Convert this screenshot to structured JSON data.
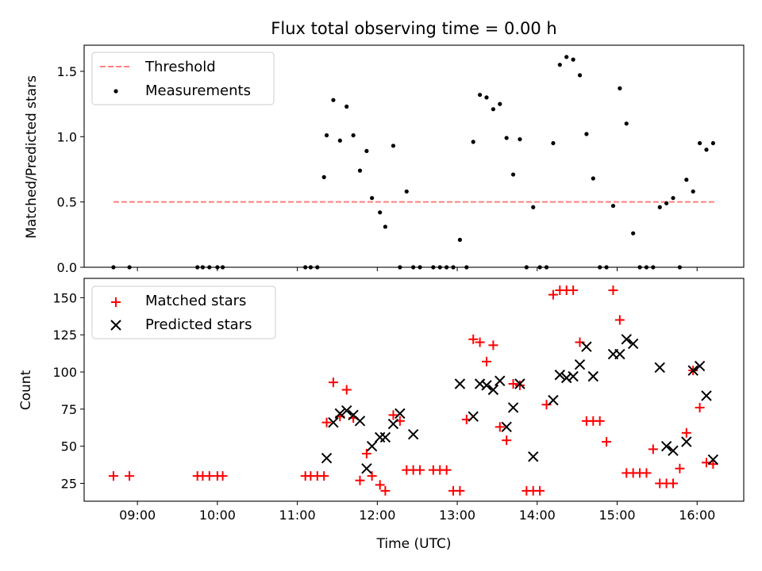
{
  "chart_data": [
    {
      "type": "scatter",
      "title": "Flux total observing time = 0.00 h",
      "xlabel": "",
      "ylabel": "Matched/Predicted stars",
      "xlim": [
        "08:20",
        "16:35"
      ],
      "ylim": [
        0,
        1.7
      ],
      "yticks": [
        0.0,
        0.5,
        1.0,
        1.5
      ],
      "ytick_labels": [
        "0.0",
        "0.5",
        "1.0",
        "1.5"
      ],
      "xticks": [
        "09:00",
        "10:00",
        "11:00",
        "12:00",
        "13:00",
        "14:00",
        "15:00",
        "16:00"
      ],
      "grid": false,
      "legend_position": "top-left",
      "series": [
        {
          "name": "Threshold",
          "style": "dashed-line",
          "color": "#ff7f7f",
          "x": [
            "08:42",
            "16:13"
          ],
          "y": [
            0.5,
            0.5
          ]
        },
        {
          "name": "Measurements",
          "style": "dot",
          "color": "#000000",
          "x": [
            "08:42",
            "08:54",
            "09:45",
            "09:49",
            "09:54",
            "10:00",
            "10:04",
            "11:06",
            "11:10",
            "11:15",
            "11:20",
            "11:22",
            "11:27",
            "11:32",
            "11:37",
            "11:42",
            "11:47",
            "11:52",
            "11:56",
            "12:02",
            "12:06",
            "12:12",
            "12:17",
            "12:22",
            "12:27",
            "12:32",
            "12:42",
            "12:47",
            "12:52",
            "12:57",
            "13:02",
            "13:07",
            "13:12",
            "13:17",
            "13:22",
            "13:27",
            "13:32",
            "13:37",
            "13:42",
            "13:47",
            "13:52",
            "13:57",
            "14:02",
            "14:07",
            "14:12",
            "14:17",
            "14:22",
            "14:27",
            "14:32",
            "14:37",
            "14:42",
            "14:47",
            "14:52",
            "14:57",
            "15:02",
            "15:07",
            "15:12",
            "15:17",
            "15:22",
            "15:27",
            "15:32",
            "15:37",
            "15:42",
            "15:47",
            "15:52",
            "15:57",
            "16:02",
            "16:07",
            "16:12"
          ],
          "y": [
            0.0,
            0.0,
            0.0,
            0.0,
            0.0,
            0.0,
            0.0,
            0.0,
            0.0,
            0.0,
            0.69,
            1.01,
            1.28,
            0.97,
            1.23,
            1.01,
            0.74,
            0.89,
            0.53,
            0.42,
            0.31,
            0.93,
            0.0,
            0.58,
            0.0,
            0.0,
            0.0,
            0.0,
            0.0,
            0.0,
            0.21,
            0.0,
            0.96,
            1.32,
            1.3,
            1.21,
            1.25,
            0.99,
            0.71,
            0.98,
            0.0,
            0.46,
            0.0,
            0.0,
            0.95,
            1.55,
            1.61,
            1.59,
            1.47,
            1.02,
            0.68,
            0.0,
            0.0,
            0.47,
            1.37,
            1.1,
            0.26,
            0.0,
            0.0,
            0.0,
            0.46,
            0.49,
            0.53,
            0.0,
            0.67,
            0.58,
            0.95,
            0.9,
            0.95
          ]
        }
      ]
    },
    {
      "type": "scatter",
      "title": "",
      "xlabel": "Time (UTC)",
      "ylabel": "Count",
      "xlim": [
        "08:20",
        "16:35"
      ],
      "ylim": [
        13,
        163
      ],
      "yticks": [
        25,
        50,
        75,
        100,
        125,
        150
      ],
      "ytick_labels": [
        "25",
        "50",
        "75",
        "100",
        "125",
        "150"
      ],
      "xticks": [
        "09:00",
        "10:00",
        "11:00",
        "12:00",
        "13:00",
        "14:00",
        "15:00",
        "16:00"
      ],
      "xtick_labels": [
        "09:00",
        "10:00",
        "11:00",
        "12:00",
        "13:00",
        "14:00",
        "15:00",
        "16:00"
      ],
      "grid": false,
      "legend_position": "top-left",
      "series": [
        {
          "name": "Matched stars",
          "style": "plus",
          "color": "#ff0000",
          "x": [
            "08:42",
            "08:54",
            "09:45",
            "09:49",
            "09:54",
            "10:00",
            "10:04",
            "11:06",
            "11:10",
            "11:15",
            "11:20",
            "11:22",
            "11:27",
            "11:32",
            "11:37",
            "11:42",
            "11:47",
            "11:52",
            "11:56",
            "12:02",
            "12:06",
            "12:12",
            "12:17",
            "12:22",
            "12:27",
            "12:32",
            "12:42",
            "12:47",
            "12:52",
            "12:57",
            "13:02",
            "13:07",
            "13:12",
            "13:17",
            "13:22",
            "13:27",
            "13:32",
            "13:37",
            "13:42",
            "13:47",
            "13:52",
            "13:57",
            "14:02",
            "14:07",
            "14:12",
            "14:17",
            "14:22",
            "14:27",
            "14:32",
            "14:37",
            "14:42",
            "14:47",
            "14:52",
            "14:57",
            "15:02",
            "15:07",
            "15:12",
            "15:17",
            "15:22",
            "15:27",
            "15:32",
            "15:37",
            "15:42",
            "15:47",
            "15:52",
            "15:57",
            "16:02",
            "16:07",
            "16:12"
          ],
          "y": [
            30,
            30,
            30,
            30,
            30,
            30,
            30,
            30,
            30,
            30,
            30,
            66,
            93,
            70,
            88,
            69,
            27,
            45,
            30,
            24,
            20,
            71,
            67,
            34,
            34,
            34,
            34,
            34,
            34,
            20,
            20,
            68,
            122,
            120,
            107,
            118,
            63,
            54,
            92,
            91,
            20,
            20,
            20,
            78,
            152,
            155,
            155,
            155,
            120,
            67,
            67,
            67,
            53,
            155,
            135,
            32,
            32,
            32,
            32,
            48,
            25,
            25,
            25,
            35,
            59,
            101,
            76,
            39,
            38
          ]
        },
        {
          "name": "Predicted stars",
          "style": "x",
          "color": "#000000",
          "x": [
            "11:22",
            "11:27",
            "11:32",
            "11:37",
            "11:42",
            "11:47",
            "11:52",
            "11:56",
            "12:02",
            "12:06",
            "12:12",
            "12:17",
            "12:27",
            "13:02",
            "13:12",
            "13:17",
            "13:22",
            "13:27",
            "13:32",
            "13:37",
            "13:42",
            "13:47",
            "13:57",
            "14:12",
            "14:17",
            "14:22",
            "14:27",
            "14:32",
            "14:37",
            "14:42",
            "14:57",
            "15:02",
            "15:07",
            "15:12",
            "15:32",
            "15:37",
            "15:42",
            "15:52",
            "15:57",
            "16:02",
            "16:07",
            "16:12"
          ],
          "y": [
            42,
            66,
            72,
            74,
            71,
            67,
            35,
            50,
            56,
            56,
            65,
            72,
            58,
            92,
            70,
            92,
            91,
            88,
            94,
            63,
            76,
            92,
            43,
            81,
            98,
            96,
            97,
            105,
            117,
            97,
            112,
            112,
            122,
            119,
            103,
            50,
            47,
            53,
            101,
            104,
            84,
            41
          ]
        }
      ]
    }
  ]
}
